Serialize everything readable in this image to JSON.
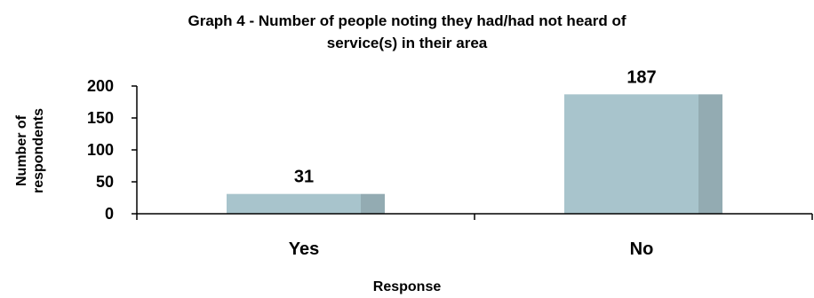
{
  "chart_data": {
    "type": "bar",
    "title_line1": "Graph 4 - Number of people noting they had/had not heard of",
    "title_line2": "service(s) in their area",
    "ylabel_line1": "Number of",
    "ylabel_line2": "respondents",
    "xlabel": "Response",
    "categories": [
      "Yes",
      "No"
    ],
    "values": [
      31,
      187
    ],
    "data_labels": [
      "31",
      "187"
    ],
    "ylim": [
      0,
      200
    ],
    "yticks": [
      0,
      50,
      100,
      150,
      200
    ],
    "ytick_labels": [
      "0",
      "50",
      "100",
      "150",
      "200"
    ],
    "grid": false,
    "legend": "none",
    "colors": {
      "bar_front": "#a8c4cc",
      "bar_side": "#93abb2",
      "axis": "#000000"
    }
  }
}
